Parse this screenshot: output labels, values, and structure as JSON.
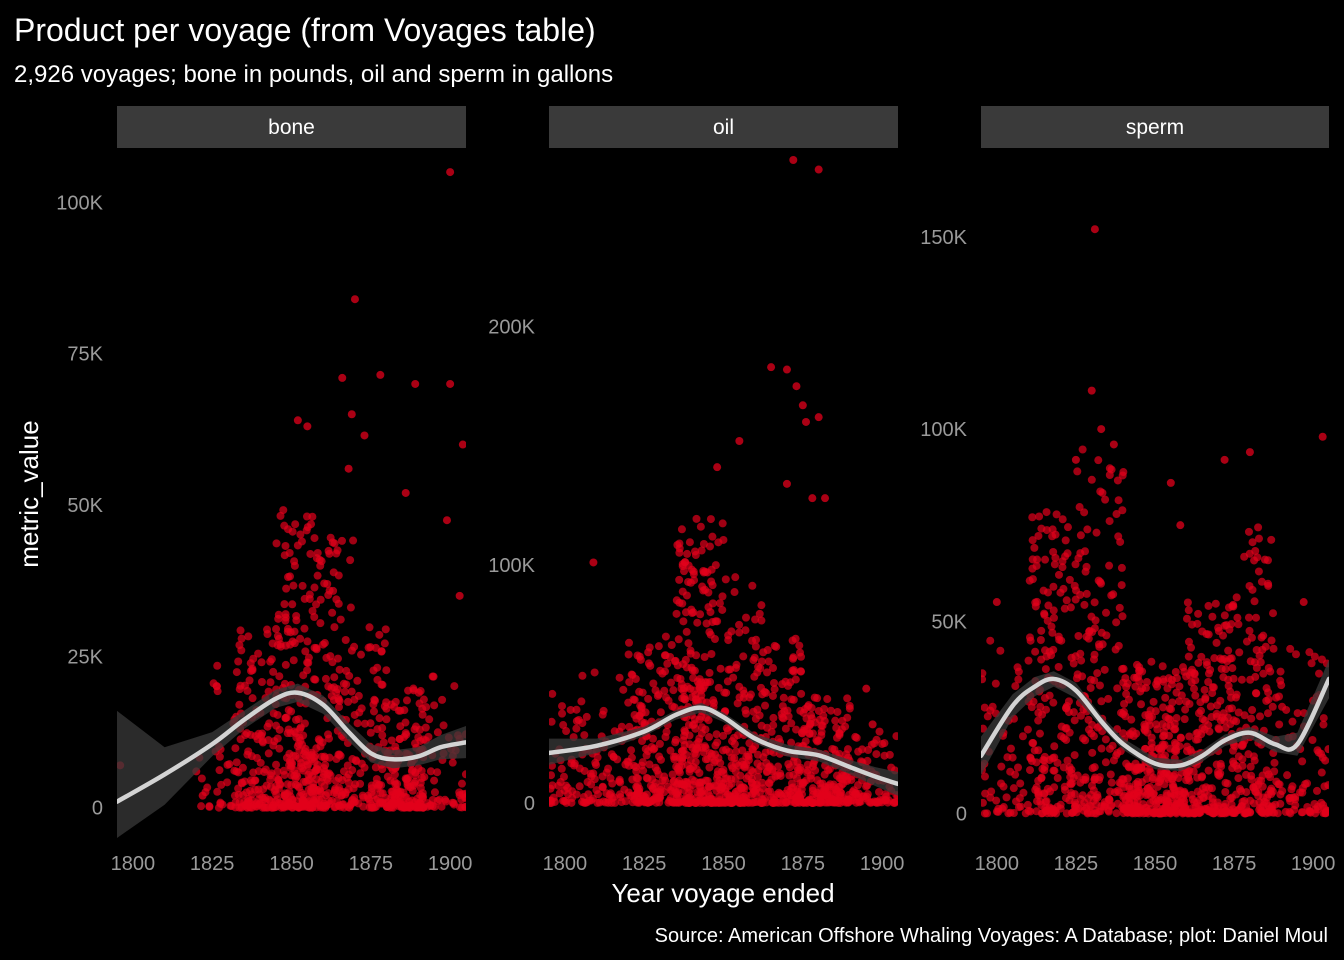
{
  "chart_data": {
    "type": "scatter",
    "title": "Product per voyage (from Voyages table)",
    "subtitle": "2,926 voyages; bone in pounds, oil and sperm in gallons",
    "xlabel": "Year voyage ended",
    "ylabel": "metric_value",
    "caption": "Source: American Offshore Whaling Voyages: A Database; plot: Daniel Moul",
    "x_ticks": [
      "1800",
      "1825",
      "1850",
      "1875",
      "1900"
    ],
    "xlim": [
      1795,
      1905
    ],
    "point_color": "#e3001b",
    "smooth_color": "#d3d3d3",
    "ribbon_color": "#3a3a3a",
    "strip_color": "#3a3a3a",
    "grid": false,
    "facets": [
      {
        "name": "bone",
        "ylim": [
          -5000,
          107000
        ],
        "y_ticks": [
          {
            "value": 0,
            "label": "0"
          },
          {
            "value": 25000,
            "label": "25K"
          },
          {
            "value": 50000,
            "label": "50K"
          },
          {
            "value": 75000,
            "label": "75K"
          },
          {
            "value": 100000,
            "label": "100K"
          }
        ],
        "smooth": [
          [
            1795,
            1000
          ],
          [
            1810,
            5500
          ],
          [
            1825,
            10500
          ],
          [
            1835,
            14500
          ],
          [
            1845,
            18000
          ],
          [
            1852,
            19000
          ],
          [
            1860,
            17000
          ],
          [
            1868,
            12500
          ],
          [
            1875,
            9000
          ],
          [
            1882,
            8000
          ],
          [
            1890,
            8500
          ],
          [
            1897,
            10000
          ],
          [
            1905,
            10800
          ]
        ],
        "ribbon": [
          [
            1795,
            16000,
            -5000
          ],
          [
            1810,
            10000,
            500
          ],
          [
            1825,
            12500,
            8500
          ],
          [
            1835,
            16000,
            13000
          ],
          [
            1845,
            19500,
            16500
          ],
          [
            1852,
            20500,
            17500
          ],
          [
            1860,
            18500,
            15500
          ],
          [
            1868,
            14000,
            11000
          ],
          [
            1875,
            10500,
            7500
          ],
          [
            1882,
            9500,
            6500
          ],
          [
            1890,
            10000,
            7000
          ],
          [
            1897,
            12000,
            8000
          ],
          [
            1905,
            13500,
            8200
          ]
        ],
        "clusters": [
          {
            "x": [
              1820,
              1832
            ],
            "y": [
              0,
              25000
            ],
            "n": 30
          },
          {
            "x": [
              1832,
              1845
            ],
            "y": [
              0,
              30000
            ],
            "n": 140
          },
          {
            "x": [
              1845,
              1858
            ],
            "y": [
              0,
              50000
            ],
            "n": 260
          },
          {
            "x": [
              1858,
              1870
            ],
            "y": [
              0,
              45000
            ],
            "n": 160
          },
          {
            "x": [
              1870,
              1880
            ],
            "y": [
              0,
              30000
            ],
            "n": 90
          },
          {
            "x": [
              1880,
              1892
            ],
            "y": [
              0,
              20000
            ],
            "n": 170
          },
          {
            "x": [
              1892,
              1905
            ],
            "y": [
              0,
              22000
            ],
            "n": 55
          }
        ],
        "outliers": [
          [
            1796,
            7000
          ],
          [
            1822,
            2000
          ],
          [
            1820,
            6000
          ],
          [
            1900,
            105000
          ],
          [
            1870,
            84000
          ],
          [
            1866,
            71000
          ],
          [
            1878,
            71500
          ],
          [
            1889,
            70000
          ],
          [
            1900,
            70000
          ],
          [
            1852,
            64000
          ],
          [
            1855,
            63000
          ],
          [
            1869,
            65000
          ],
          [
            1873,
            61500
          ],
          [
            1886,
            52000
          ],
          [
            1899,
            47500
          ],
          [
            1904,
            60000
          ],
          [
            1903,
            35000
          ],
          [
            1868,
            56000
          ]
        ]
      },
      {
        "name": "oil",
        "ylim": [
          -8000,
          270000
        ],
        "y_ticks": [
          {
            "value": 0,
            "label": "0"
          },
          {
            "value": 100000,
            "label": "100K"
          },
          {
            "value": 200000,
            "label": "200K"
          }
        ],
        "smooth": [
          [
            1795,
            21000
          ],
          [
            1810,
            24000
          ],
          [
            1825,
            30000
          ],
          [
            1835,
            37000
          ],
          [
            1843,
            40000
          ],
          [
            1850,
            36000
          ],
          [
            1860,
            27000
          ],
          [
            1870,
            22000
          ],
          [
            1880,
            20000
          ],
          [
            1890,
            15000
          ],
          [
            1898,
            11000
          ],
          [
            1905,
            8000
          ]
        ],
        "ribbon": [
          [
            1795,
            27000,
            16000
          ],
          [
            1810,
            27000,
            21000
          ],
          [
            1825,
            32000,
            28000
          ],
          [
            1835,
            39000,
            35000
          ],
          [
            1843,
            42000,
            38000
          ],
          [
            1850,
            38000,
            34000
          ],
          [
            1860,
            29000,
            25000
          ],
          [
            1870,
            24500,
            19500
          ],
          [
            1880,
            22500,
            17500
          ],
          [
            1890,
            18000,
            12000
          ],
          [
            1898,
            15000,
            7000
          ],
          [
            1905,
            13000,
            3000
          ]
        ],
        "clusters": [
          {
            "x": [
              1795,
              1820
            ],
            "y": [
              0,
              55000
            ],
            "n": 130
          },
          {
            "x": [
              1820,
              1835
            ],
            "y": [
              0,
              70000
            ],
            "n": 180
          },
          {
            "x": [
              1835,
              1850
            ],
            "y": [
              0,
              120000
            ],
            "n": 320
          },
          {
            "x": [
              1850,
              1862
            ],
            "y": [
              0,
              95000
            ],
            "n": 180
          },
          {
            "x": [
              1862,
              1875
            ],
            "y": [
              0,
              70000
            ],
            "n": 160
          },
          {
            "x": [
              1875,
              1890
            ],
            "y": [
              0,
              45000
            ],
            "n": 190
          },
          {
            "x": [
              1890,
              1905
            ],
            "y": [
              0,
              30000
            ],
            "n": 80
          }
        ],
        "outliers": [
          [
            1809,
            101000
          ],
          [
            1872,
            270000
          ],
          [
            1880,
            266000
          ],
          [
            1865,
            183000
          ],
          [
            1870,
            182000
          ],
          [
            1873,
            175000
          ],
          [
            1875,
            167000
          ],
          [
            1876,
            160000
          ],
          [
            1880,
            162000
          ],
          [
            1855,
            152000
          ],
          [
            1848,
            141000
          ],
          [
            1870,
            134000
          ],
          [
            1878,
            128000
          ],
          [
            1882,
            128000
          ],
          [
            1895,
            48000
          ],
          [
            1897,
            33000
          ]
        ]
      },
      {
        "name": "sperm",
        "ylim": [
          -3000,
          170000
        ],
        "y_ticks": [
          {
            "value": 0,
            "label": "0"
          },
          {
            "value": 50000,
            "label": "50K"
          },
          {
            "value": 100000,
            "label": "100K"
          },
          {
            "value": 150000,
            "label": "150K"
          }
        ],
        "smooth": [
          [
            1795,
            15000
          ],
          [
            1805,
            28000
          ],
          [
            1812,
            33000
          ],
          [
            1818,
            35000
          ],
          [
            1825,
            32000
          ],
          [
            1833,
            24000
          ],
          [
            1840,
            18000
          ],
          [
            1850,
            13000
          ],
          [
            1858,
            12500
          ],
          [
            1865,
            15000
          ],
          [
            1872,
            19000
          ],
          [
            1880,
            21000
          ],
          [
            1888,
            18000
          ],
          [
            1895,
            18000
          ],
          [
            1905,
            35000
          ]
        ],
        "ribbon": [
          [
            1795,
            20000,
            10000
          ],
          [
            1805,
            31000,
            25000
          ],
          [
            1812,
            35500,
            30500
          ],
          [
            1818,
            37000,
            33000
          ],
          [
            1825,
            34000,
            30000
          ],
          [
            1833,
            25500,
            22500
          ],
          [
            1840,
            19500,
            16500
          ],
          [
            1850,
            14500,
            11500
          ],
          [
            1858,
            14000,
            11000
          ],
          [
            1865,
            16500,
            13500
          ],
          [
            1872,
            20500,
            17500
          ],
          [
            1880,
            22500,
            19500
          ],
          [
            1888,
            20000,
            16000
          ],
          [
            1895,
            21000,
            15000
          ],
          [
            1905,
            40000,
            30000
          ]
        ],
        "clusters": [
          {
            "x": [
              1795,
              1810
            ],
            "y": [
              0,
              45000
            ],
            "n": 60
          },
          {
            "x": [
              1810,
              1825
            ],
            "y": [
              0,
              80000
            ],
            "n": 200
          },
          {
            "x": [
              1825,
              1840
            ],
            "y": [
              0,
              95000
            ],
            "n": 180
          },
          {
            "x": [
              1840,
              1860
            ],
            "y": [
              0,
              40000
            ],
            "n": 350
          },
          {
            "x": [
              1860,
              1875
            ],
            "y": [
              0,
              55000
            ],
            "n": 220
          },
          {
            "x": [
              1875,
              1888
            ],
            "y": [
              0,
              75000
            ],
            "n": 160
          },
          {
            "x": [
              1888,
              1905
            ],
            "y": [
              0,
              45000
            ],
            "n": 90
          }
        ],
        "outliers": [
          [
            1831,
            152000
          ],
          [
            1830,
            110000
          ],
          [
            1833,
            100000
          ],
          [
            1825,
            92000
          ],
          [
            1837,
            96000
          ],
          [
            1872,
            92000
          ],
          [
            1880,
            94000
          ],
          [
            1903,
            98000
          ],
          [
            1897,
            55000
          ],
          [
            1800,
            55000
          ],
          [
            1855,
            86000
          ],
          [
            1858,
            75000
          ]
        ]
      }
    ]
  }
}
